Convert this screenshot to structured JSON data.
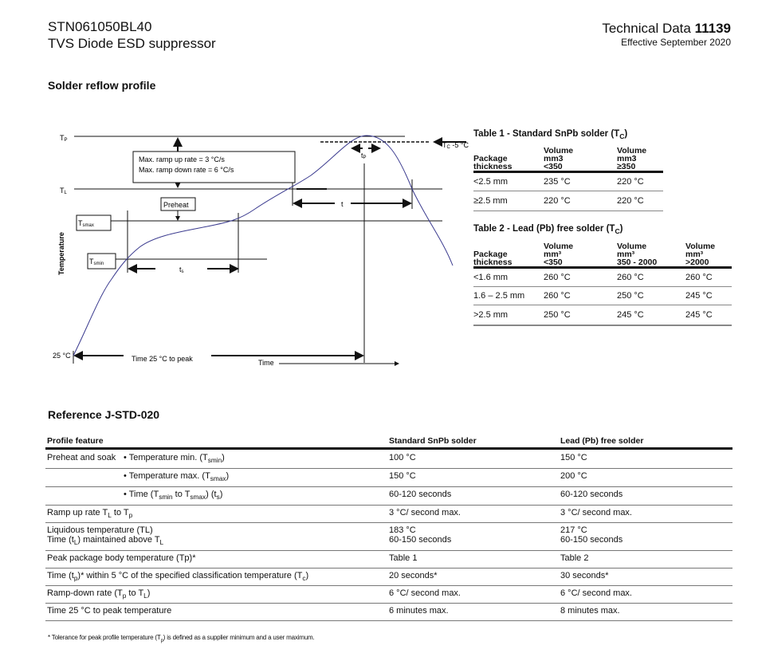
{
  "header": {
    "part_number": "STN061050BL40",
    "product": "TVS Diode ESD suppressor",
    "doc_type": "Technical Data",
    "doc_number": "11139",
    "effective": "Effective September 2020"
  },
  "section_title": "Solder reflow profile",
  "diagram": {
    "tp": "T",
    "tp_sub": "P",
    "tl": "T",
    "tl_sub": "L",
    "ramp_line1": "Max. ramp up rate = 3 °C/s",
    "ramp_line2": "Max. ramp down rate = 6 °C/s",
    "preheat": "Preheat",
    "tsmax": "T",
    "tsmax_sub": "smax",
    "tsmin": "T",
    "tsmin_sub": "smin",
    "ts": "t",
    "ts_sub": "s",
    "t": "t",
    "tp_time": "t",
    "tp_time_sub": "P",
    "tc_label": "T",
    "tc_sub": "C",
    "tc_suffix": " -5 °C",
    "y_label": "Temperature",
    "start": "25 °C",
    "time_to_peak": "Time 25 °C to peak",
    "x_label": "Time",
    "curve_color": "#3b3b8f"
  },
  "table1": {
    "title": "Table 1 - Standard SnPb solder (T",
    "title_sub": "C",
    "title_end": ")",
    "headers": [
      [
        "Package",
        "thickness"
      ],
      [
        "Volume",
        "mm3",
        "<350"
      ],
      [
        "Volume",
        "mm3",
        "≥350"
      ]
    ],
    "rows": [
      [
        "<2.5 mm",
        "235 °C",
        "220 °C"
      ],
      [
        "≥2.5 mm",
        "220 °C",
        "220 °C"
      ]
    ]
  },
  "table2": {
    "title": "Table 2 - Lead (Pb) free solder (T",
    "title_sub": "C",
    "title_end": ")",
    "headers": [
      [
        "Package",
        "thickness"
      ],
      [
        "Volume",
        "mm³",
        "<350"
      ],
      [
        "Volume",
        "mm³",
        "350 - 2000"
      ],
      [
        "Volume",
        "mm³",
        ">2000"
      ]
    ],
    "rows": [
      [
        "<1.6 mm",
        "260 °C",
        "260 °C",
        "260 °C"
      ],
      [
        "1.6 – 2.5 mm",
        "260 °C",
        "250 °C",
        "245 °C"
      ],
      [
        ">2.5 mm",
        "250 °C",
        "245 °C",
        "245 °C"
      ]
    ]
  },
  "reference": {
    "title": "Reference J-STD-020",
    "headers": [
      "Profile feature",
      "Standard SnPb solder",
      "Lead (Pb) free solder"
    ],
    "rows": [
      {
        "a": "Preheat and soak",
        "b": [
          "• Temperature min. (T",
          "smin",
          ")"
        ],
        "c": "100 °C",
        "d": "150 °C"
      },
      {
        "a": "",
        "b": [
          "• Temperature max. (T",
          "smax",
          ")"
        ],
        "c": "150 °C",
        "d": "200 °C"
      },
      {
        "a": "",
        "b": [
          "• Time (T",
          "smin",
          " to T",
          "smax",
          ") (t",
          "s",
          ")"
        ],
        "c": "60-120 seconds",
        "d": "60-120 seconds"
      },
      {
        "a": [
          "Ramp up rate T",
          "L",
          " to T",
          "p",
          ""
        ],
        "c": "3 °C/ second max.",
        "d": "3 °C/ second max."
      },
      {
        "a": [
          "Liquidous temperature (TL)"
        ],
        "a2": [
          "Time (t",
          "L",
          ") maintained above T",
          "L",
          ""
        ],
        "c": "183 °C",
        "c2": "60-150 seconds",
        "d": "217 °C",
        "d2": "60-150 seconds"
      },
      {
        "a": [
          "Peak package body temperature (Tp)*"
        ],
        "c": "Table 1",
        "d": "Table 2"
      },
      {
        "a": [
          "Time (t",
          "p",
          ")* within 5 °C of the specified classification temperature (T",
          "c",
          ")"
        ],
        "c": "20 seconds*",
        "d": "30 seconds*"
      },
      {
        "a": [
          "Ramp-down rate (T",
          "p",
          " to T",
          "L",
          ")"
        ],
        "c": "6 °C/ second max.",
        "d": "6 °C/ second max."
      },
      {
        "a": [
          "Time 25 °C to peak temperature"
        ],
        "c": "6 minutes max.",
        "d": "8 minutes max."
      }
    ]
  },
  "footnote": [
    "* Tolerance for peak profile temperature (T",
    "p",
    ") is defined as a supplier minimum and a user maximum."
  ]
}
